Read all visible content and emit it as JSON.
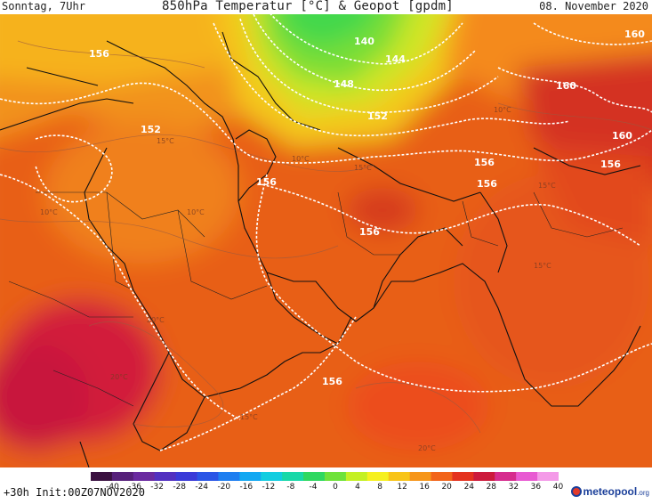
{
  "header": {
    "left": "Sonntag, 7Uhr",
    "title": "850hPa Temperatur [°C] & Geopot [gpdm]",
    "right": "08. November 2020"
  },
  "footer": {
    "run_info": "+30h Init:00Z07NOV2020",
    "logo_name": "meteopool",
    "logo_tld": ".org"
  },
  "scale": {
    "ticks": [
      "-40",
      "-36",
      "-32",
      "-28",
      "-24",
      "-20",
      "-16",
      "-12",
      "-8",
      "-4",
      "0",
      "4",
      "8",
      "12",
      "16",
      "20",
      "24",
      "28",
      "32",
      "36",
      "40"
    ],
    "colors": [
      "#3a1040",
      "#56207a",
      "#6a2aa0",
      "#5230c0",
      "#3a3ad8",
      "#2a55e6",
      "#1e7ef0",
      "#12a8f2",
      "#12cde0",
      "#18d8a8",
      "#2ed860",
      "#6ee23a",
      "#c4f024",
      "#f6f020",
      "#f8c418",
      "#f6961a",
      "#f2641a",
      "#e4321e",
      "#cc1a3c",
      "#d62c8e",
      "#e85ad2",
      "#f49ae8"
    ]
  },
  "contour_labels": [
    "140",
    "144",
    "148",
    "152",
    "152",
    "156",
    "156",
    "156",
    "156",
    "156",
    "156",
    "160",
    "160",
    "160",
    "156"
  ],
  "temp_labels": [
    "10°C",
    "10°C",
    "15°C",
    "10°C",
    "15°C",
    "15°C",
    "20°C",
    "20°C",
    "15°C",
    "20°C",
    "10°C",
    "15°C"
  ]
}
